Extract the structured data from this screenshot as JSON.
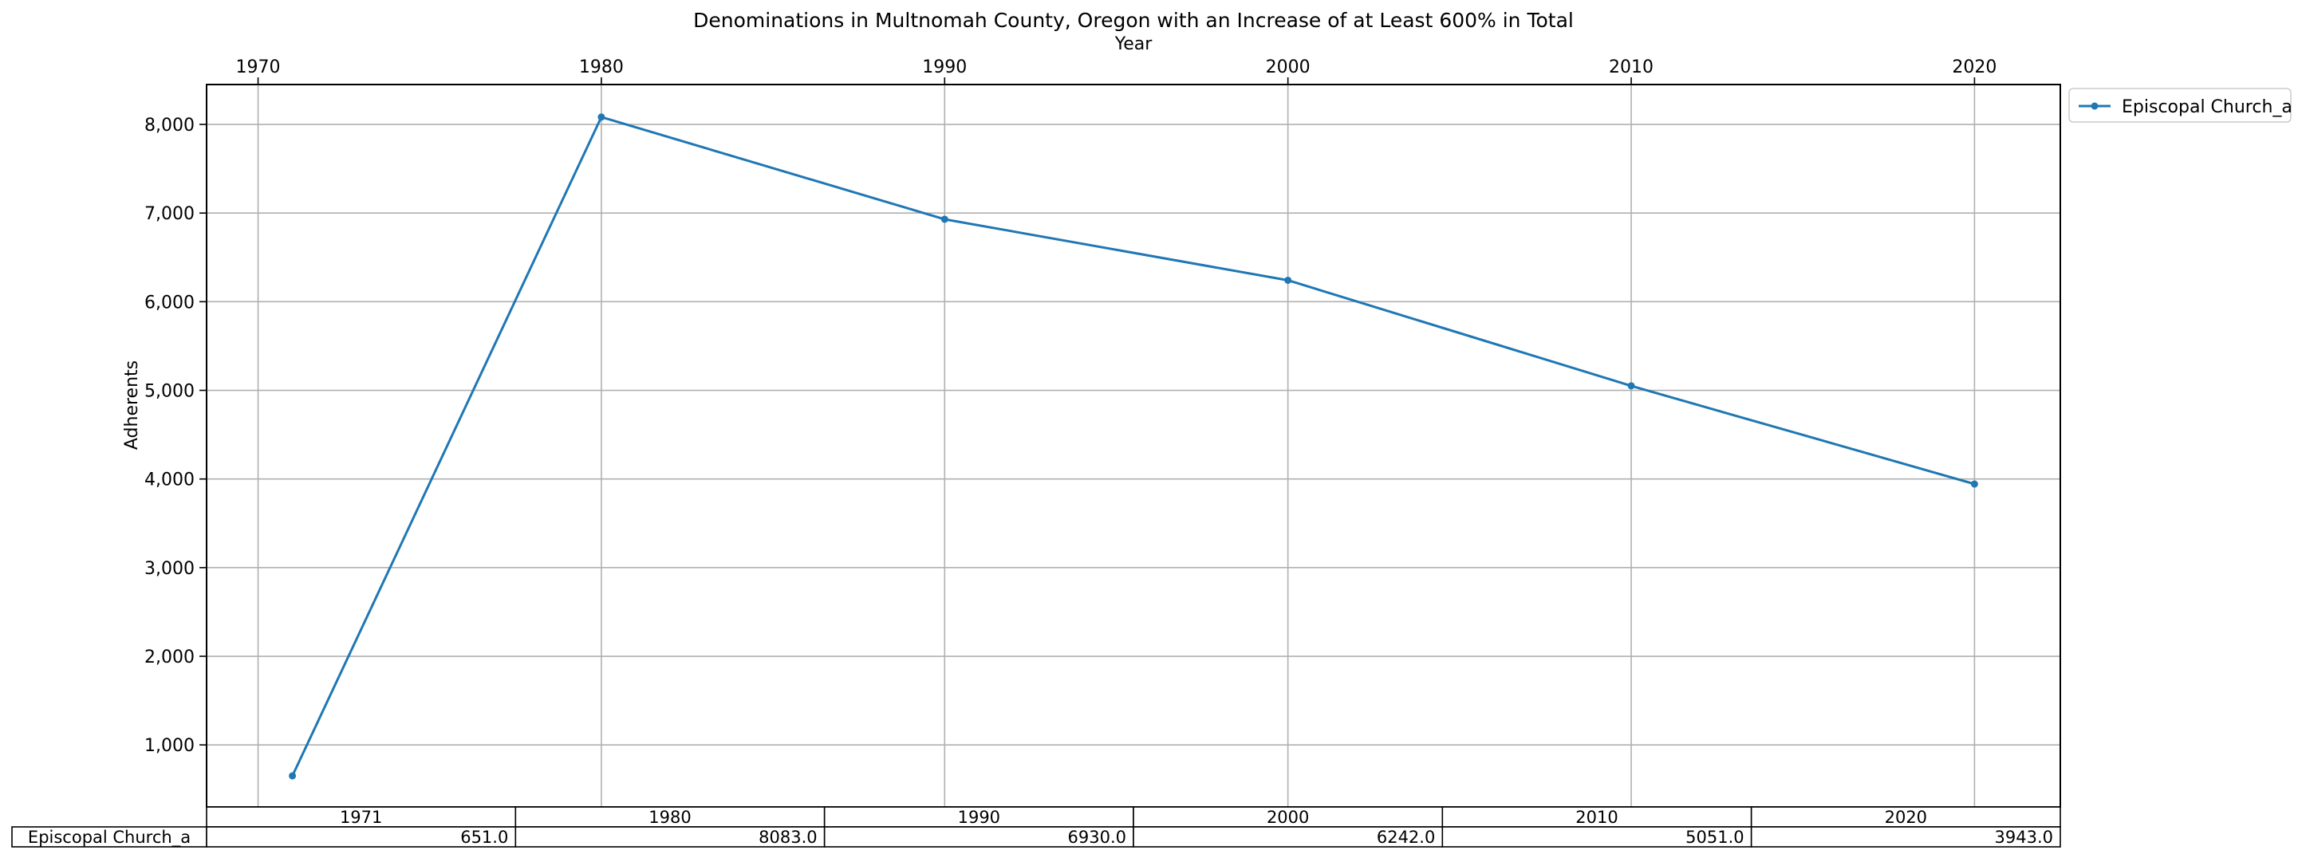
{
  "chart_data": {
    "type": "line",
    "title": "Denominations in Multnomah County, Oregon with an Increase of at Least 600% in Total",
    "xlabel": "Year",
    "ylabel": "Adherents",
    "x_ticks": [
      "1970",
      "1980",
      "1990",
      "2000",
      "2010",
      "2020"
    ],
    "x_tick_values": [
      1970,
      1980,
      1990,
      2000,
      2010,
      2020
    ],
    "y_ticks": [
      "1,000",
      "2,000",
      "3,000",
      "4,000",
      "5,000",
      "6,000",
      "7,000",
      "8,000"
    ],
    "y_tick_values": [
      1000,
      2000,
      3000,
      4000,
      5000,
      6000,
      7000,
      8000
    ],
    "xlim": [
      1968.5,
      2022.5
    ],
    "ylim": [
      300,
      8450
    ],
    "grid": true,
    "legend_position": "outside right, top",
    "x_axis_position": "top",
    "x": [
      1971,
      1980,
      1990,
      2000,
      2010,
      2020
    ],
    "series": [
      {
        "name": "Episcopal Church_a",
        "color": "#1f77b4",
        "marker": "circle",
        "values": [
          651,
          8083,
          6930,
          6242,
          5051,
          3943
        ]
      }
    ],
    "table": {
      "col_labels": [
        "1971",
        "1980",
        "1990",
        "2000",
        "2010",
        "2020"
      ],
      "row_label": "Episcopal Church_a",
      "cells": [
        "651.0",
        "8083.0",
        "6930.0",
        "6242.0",
        "5051.0",
        "3943.0"
      ]
    }
  }
}
